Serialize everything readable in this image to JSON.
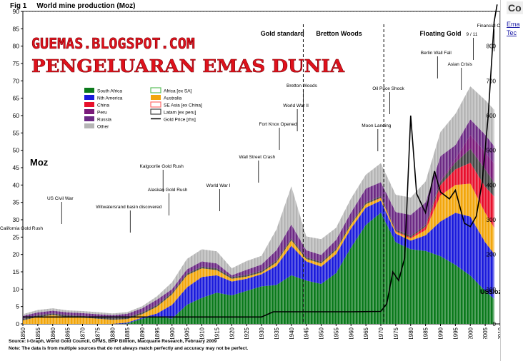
{
  "figure": {
    "number": "Fig 1",
    "title": "World mine production (Moz)",
    "source": "Source: I-Graph, World Gold Council, GFMS, BHP Billiton, Macquarie Research, February 2009",
    "note": "Note: The data is from multiple sources that do not always match perfectly and accuracy may not be perfect."
  },
  "side_panel": {
    "title": "Co",
    "links": [
      "Ema",
      "Tec"
    ]
  },
  "watermark": {
    "line1": "GUEMAS.BLOGSPOT.COM",
    "line2": "PENGELUARAN EMAS DUNIA"
  },
  "colors": {
    "south_africa": "#0b7a1c",
    "nth_america": "#1b1bdc",
    "china": "#e8102c",
    "peru": "#7a1a7a",
    "russia": "#6c2a84",
    "other": "#b5b5b5",
    "australia": "#f2a60c",
    "africa_ex_sa": "#5bbf5b",
    "se_asia": "#ff6a6a",
    "latam": "#444444",
    "gold_price": "#000000"
  },
  "chart_data": {
    "type": "area",
    "ylabel": "Moz",
    "y2label": "US$/oz",
    "ylim": [
      0,
      90
    ],
    "y2lim": [
      0,
      900
    ],
    "yticks": [
      0,
      5,
      10,
      15,
      20,
      25,
      30,
      35,
      40,
      45,
      50,
      55,
      60,
      65,
      70,
      75,
      80,
      85,
      90
    ],
    "y2ticks": [
      0,
      100,
      200,
      300,
      400,
      500,
      600,
      700,
      800
    ],
    "xticks": [
      1850,
      1855,
      1860,
      1865,
      1870,
      1875,
      1880,
      1885,
      1890,
      1895,
      1900,
      1905,
      1910,
      1915,
      1920,
      1925,
      1930,
      1935,
      1940,
      1945,
      1950,
      1955,
      1960,
      1965,
      1970,
      1975,
      1980,
      1985,
      1990,
      1995,
      2000,
      2005,
      2010
    ],
    "x": [
      1850,
      1855,
      1860,
      1865,
      1870,
      1875,
      1880,
      1885,
      1890,
      1895,
      1900,
      1905,
      1910,
      1915,
      1920,
      1925,
      1930,
      1935,
      1940,
      1945,
      1950,
      1955,
      1960,
      1965,
      1970,
      1975,
      1980,
      1985,
      1990,
      1995,
      2000,
      2005,
      2008
    ],
    "series": [
      {
        "name": "South Africa",
        "key": "south_africa",
        "values": [
          0,
          0,
          0,
          0,
          0,
          0,
          0,
          0.1,
          1.5,
          2.2,
          1.5,
          5.5,
          7.5,
          9.0,
          8.2,
          9.5,
          10.8,
          11.2,
          14.0,
          12.5,
          11.5,
          14.6,
          22.0,
          28.5,
          32.0,
          23.5,
          21.5,
          21.0,
          19.5,
          17.0,
          13.9,
          9.5,
          7.2
        ]
      },
      {
        "name": "Nth America",
        "key": "nth_america",
        "values": [
          0,
          0,
          0,
          0,
          0,
          0,
          0,
          0.3,
          0.3,
          0.8,
          4.0,
          5.0,
          6.0,
          5.0,
          4.0,
          3.5,
          3.5,
          5.5,
          8.5,
          5.5,
          5.0,
          5.5,
          5.5,
          5.0,
          3.5,
          2.5,
          2.5,
          4.5,
          10.0,
          15.0,
          17.0,
          14.0,
          13.0
        ]
      },
      {
        "name": "Australia",
        "key": "australia",
        "values": [
          1.0,
          2.0,
          2.5,
          2.0,
          1.8,
          1.5,
          1.2,
          1.0,
          1.0,
          2.0,
          3.0,
          3.5,
          2.5,
          1.5,
          0.8,
          0.6,
          0.5,
          1.0,
          1.6,
          0.7,
          0.9,
          1.1,
          1.1,
          1.0,
          0.7,
          0.5,
          0.6,
          1.5,
          7.5,
          8.0,
          9.5,
          8.5,
          7.5
        ]
      },
      {
        "name": "China",
        "key": "china",
        "values": [
          0,
          0,
          0,
          0,
          0,
          0,
          0,
          0,
          0,
          0,
          0,
          0,
          0,
          0,
          0,
          0,
          0,
          0,
          0,
          0,
          0,
          0,
          0,
          0,
          0.1,
          0.2,
          0.3,
          1.0,
          3.0,
          4.5,
          6.0,
          7.5,
          9.0
        ]
      },
      {
        "name": "Latam [ex peru]",
        "key": "latam",
        "values": [
          0.5,
          0.5,
          0.5,
          0.5,
          0.5,
          0.5,
          0.5,
          0.5,
          0.5,
          0.5,
          0.5,
          0.5,
          0.5,
          0.5,
          0.5,
          0.5,
          0.5,
          0.5,
          0.5,
          0.5,
          0.5,
          0.5,
          0.5,
          0.5,
          0.5,
          0.5,
          0.5,
          0.5,
          1.0,
          2.0,
          4.0,
          5.0,
          4.0
        ]
      },
      {
        "name": "Peru",
        "key": "peru",
        "values": [
          0,
          0,
          0,
          0,
          0,
          0,
          0,
          0,
          0,
          0,
          0,
          0,
          0,
          0,
          0,
          0,
          0,
          0,
          0,
          0,
          0,
          0,
          0,
          0,
          0,
          0,
          0,
          0,
          0.3,
          1.0,
          4.0,
          5.0,
          5.5
        ]
      },
      {
        "name": "Russia",
        "key": "russia",
        "values": [
          0.8,
          0.8,
          0.8,
          0.8,
          0.8,
          0.8,
          0.8,
          1.0,
          1.2,
          1.5,
          1.0,
          1.2,
          1.5,
          1.4,
          0.5,
          1.5,
          1.8,
          3.0,
          4.0,
          2.0,
          2.0,
          2.5,
          3.0,
          4.0,
          4.0,
          5.0,
          6.0,
          6.5,
          7.0,
          4.0,
          4.5,
          5.0,
          5.0
        ]
      },
      {
        "name": "Other",
        "key": "other",
        "values": [
          0.5,
          0.7,
          0.7,
          0.6,
          0.6,
          0.6,
          0.5,
          0.5,
          0.6,
          1.0,
          2.0,
          3.0,
          3.5,
          3.5,
          2.0,
          2.5,
          2.5,
          6.0,
          11.0,
          4.0,
          4.5,
          3.5,
          4.0,
          4.0,
          5.5,
          5.0,
          5.0,
          6.0,
          7.0,
          9.0,
          9.5,
          10.0,
          10.5
        ]
      }
    ],
    "gold_price": {
      "name": "Gold Price [rhs]",
      "axis": "right",
      "x": [
        1850,
        1870,
        1900,
        1930,
        1934,
        1940,
        1950,
        1960,
        1970,
        1972,
        1974,
        1976,
        1978,
        1980,
        1982,
        1985,
        1988,
        1990,
        1993,
        1995,
        1998,
        2000,
        2002,
        2004,
        2006,
        2008,
        2009
      ],
      "values": [
        20,
        20,
        20,
        20,
        35,
        35,
        35,
        35,
        36,
        58,
        150,
        125,
        190,
        600,
        375,
        320,
        440,
        380,
        360,
        385,
        290,
        280,
        310,
        410,
        600,
        870,
        920
      ]
    },
    "legend": {
      "placement": "top-left",
      "entries": [
        {
          "label": "South Africa",
          "key": "south_africa",
          "style": "fill"
        },
        {
          "label": "Africa [ex SA]",
          "key": "africa_ex_sa",
          "style": "outline"
        },
        {
          "label": "Nth America",
          "key": "nth_america",
          "style": "fill"
        },
        {
          "label": "Australia",
          "key": "australia",
          "style": "fill"
        },
        {
          "label": "China",
          "key": "china",
          "style": "fill"
        },
        {
          "label": "SE Asia [ex China]",
          "key": "se_asia",
          "style": "outline"
        },
        {
          "label": "Peru",
          "key": "peru",
          "style": "fill"
        },
        {
          "label": "Latam [ex peru]",
          "key": "latam",
          "style": "outline"
        },
        {
          "label": "Russia",
          "key": "russia",
          "style": "fill"
        },
        {
          "label": "Gold Price [rhs]",
          "key": "gold_price",
          "style": "line"
        },
        {
          "label": "Other",
          "key": "other",
          "style": "fill"
        }
      ]
    },
    "era_labels": [
      {
        "text": "Gold standard",
        "x": 1937
      },
      {
        "text": "Bretton Woods",
        "x": 1956
      },
      {
        "text": "Floating Gold",
        "x": 1990
      }
    ],
    "era_dividers": [
      1944,
      1971
    ],
    "annotations": [
      {
        "text": "California Gold Rush",
        "x": 1850
      },
      {
        "text": "US Civil War",
        "x": 1863
      },
      {
        "text": "Witwatersrand basin discovered",
        "x": 1886
      },
      {
        "text": "Kalgoorlie Gold Rush",
        "x": 1897
      },
      {
        "text": "Alaskan Gold Rush",
        "x": 1899
      },
      {
        "text": "World War I",
        "x": 1916
      },
      {
        "text": "Wall Street Crash",
        "x": 1929
      },
      {
        "text": "Fort Knox Opened",
        "x": 1936
      },
      {
        "text": "World War II",
        "x": 1942
      },
      {
        "text": "Bretton Woods",
        "x": 1944
      },
      {
        "text": "Moon Landing",
        "x": 1969
      },
      {
        "text": "Oil Price Shock",
        "x": 1973
      },
      {
        "text": "Berlin Wall Fall",
        "x": 1989
      },
      {
        "text": "Asian Crisis",
        "x": 1997
      },
      {
        "text": "9 / 11",
        "x": 2001
      },
      {
        "text": "Financial Crisis",
        "x": 2008
      }
    ],
    "grid": false
  }
}
